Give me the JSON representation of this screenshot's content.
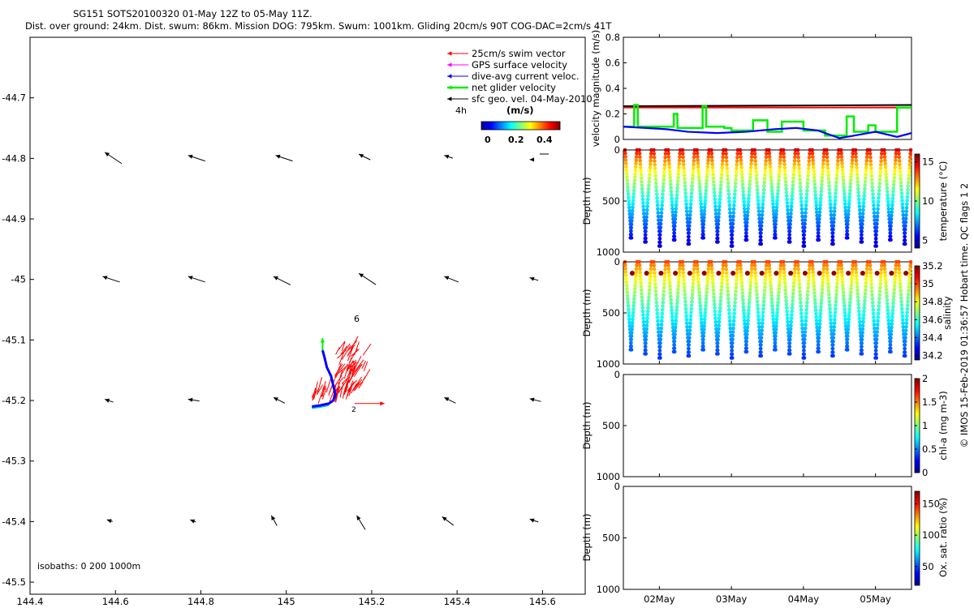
{
  "header": {
    "line1": "SG151 SOTS20100320 01-May 12Z to 05-May 11Z.",
    "line2": "Dist. over ground: 24km. Dist. swum: 86km. Mission DOG: 795km. Swum: 1001km. Gliding 20cm/s 90T COG-DAC=2cm/s 41T"
  },
  "credit": "© IMOS 15-Feb-2019 01:36:57 Hobart time. QC flags 1  2",
  "colors": {
    "swim": "#ff0000",
    "gps": "#ff00ff",
    "dac": "#0000ff",
    "net": "#00ee00",
    "geo": "#000000",
    "isobath": "#00bbdd"
  },
  "chart_data": [
    {
      "id": "map",
      "type": "scatter",
      "xlim": [
        144.4,
        145.7
      ],
      "ylim": [
        -45.52,
        -44.6
      ],
      "xticks": [
        144.4,
        144.6,
        144.8,
        145,
        145.2,
        145.4,
        145.6
      ],
      "xtick_labels": [
        "144.4",
        "144.6",
        "144.8",
        "145",
        "145.2",
        "145.4",
        "145.6"
      ],
      "yticks": [
        -44.7,
        -44.8,
        -44.9,
        -45,
        -45.1,
        -45.2,
        -45.3,
        -45.4,
        -45.5
      ],
      "ytick_labels": [
        "-44.7",
        "-44.8",
        "-44.9",
        "-45",
        "-45.1",
        "-45.2",
        "-45.3",
        "-45.4",
        "-45.5"
      ],
      "legend": {
        "placement": "top-right",
        "entries": [
          "25cm/s swim vector",
          "GPS surface velocity",
          "dive-avg current veloc.",
          "net glider velocity",
          "sfc geo. vel. 04-May-2010"
        ]
      },
      "scale_label": "4h",
      "colorbar": {
        "label": "(m/s)",
        "ticks": [
          0,
          0.2,
          0.4
        ],
        "tick_labels": [
          "0",
          "0.2",
          "0.4"
        ]
      },
      "track_labels": [
        "6",
        "2"
      ],
      "isobaths_note": "isobaths: 0   200  1000m",
      "geo_vectors": [
        {
          "lon": 144.575,
          "lat": -44.79,
          "u": -0.03,
          "v": 0.02
        },
        {
          "lon": 144.77,
          "lat": -44.795,
          "u": -0.03,
          "v": 0.01
        },
        {
          "lon": 144.975,
          "lat": -44.795,
          "u": -0.03,
          "v": 0.01
        },
        {
          "lon": 145.17,
          "lat": -44.793,
          "u": -0.02,
          "v": 0.01
        },
        {
          "lon": 145.37,
          "lat": -44.795,
          "u": -0.015,
          "v": 0.005
        },
        {
          "lon": 145.57,
          "lat": -44.802,
          "u": -0.008,
          "v": 0.0
        },
        {
          "lon": 144.57,
          "lat": -44.995,
          "u": -0.03,
          "v": 0.01
        },
        {
          "lon": 144.77,
          "lat": -44.995,
          "u": -0.03,
          "v": 0.01
        },
        {
          "lon": 144.97,
          "lat": -44.995,
          "u": -0.03,
          "v": 0.015
        },
        {
          "lon": 145.17,
          "lat": -44.99,
          "u": -0.03,
          "v": 0.02
        },
        {
          "lon": 145.37,
          "lat": -44.995,
          "u": -0.025,
          "v": 0.01
        },
        {
          "lon": 145.57,
          "lat": -44.997,
          "u": -0.015,
          "v": 0.005
        },
        {
          "lon": 144.575,
          "lat": -45.198,
          "u": -0.015,
          "v": 0.005
        },
        {
          "lon": 144.77,
          "lat": -45.198,
          "u": -0.02,
          "v": 0.003
        },
        {
          "lon": 144.97,
          "lat": -45.195,
          "u": -0.02,
          "v": 0.01
        },
        {
          "lon": 145.37,
          "lat": -45.195,
          "u": -0.02,
          "v": 0.01
        },
        {
          "lon": 145.57,
          "lat": -45.197,
          "u": -0.02,
          "v": 0.005
        },
        {
          "lon": 144.58,
          "lat": -45.397,
          "u": -0.01,
          "v": 0.003
        },
        {
          "lon": 144.775,
          "lat": -45.397,
          "u": -0.01,
          "v": 0.004
        },
        {
          "lon": 144.965,
          "lat": -45.39,
          "u": -0.01,
          "v": 0.018
        },
        {
          "lon": 145.165,
          "lat": -45.39,
          "u": -0.015,
          "v": 0.025
        },
        {
          "lon": 145.365,
          "lat": -45.392,
          "u": -0.02,
          "v": 0.015
        },
        {
          "lon": 145.57,
          "lat": -45.396,
          "u": -0.015,
          "v": 0.005
        }
      ],
      "track": [
        [
          145.06,
          -45.21
        ],
        [
          145.08,
          -45.208
        ],
        [
          145.1,
          -45.205
        ],
        [
          145.11,
          -45.2
        ],
        [
          145.115,
          -45.19
        ],
        [
          145.11,
          -45.175
        ],
        [
          145.105,
          -45.16
        ],
        [
          145.095,
          -45.145
        ],
        [
          145.09,
          -45.13
        ],
        [
          145.085,
          -45.117
        ]
      ],
      "swim_region": {
        "lon": [
          145.06,
          145.2
        ],
        "lat": [
          -45.21,
          -45.11
        ]
      }
    },
    {
      "id": "velocity",
      "type": "line",
      "ylabel": "velocity magnitude (m/s)",
      "ylim": [
        0,
        0.8
      ],
      "yticks": [
        0,
        0.2,
        0.4,
        0.6,
        0.8
      ],
      "ytick_labels": [
        "0",
        "0.2",
        "0.4",
        "0.6",
        "0.8"
      ],
      "xlim": [
        1.5,
        5.5
      ],
      "series": [
        {
          "color": "#ff0000",
          "values": [
            0.25,
            0.25
          ]
        },
        {
          "color": "#000000",
          "values": [
            0.26,
            0.27
          ]
        },
        {
          "color": "#00ee00",
          "x": [
            1.5,
            1.65,
            1.65,
            1.7,
            1.7,
            2.2,
            2.2,
            2.25,
            2.25,
            2.6,
            2.6,
            2.65,
            2.65,
            2.9,
            2.9,
            3.0,
            3.0,
            3.3,
            3.3,
            3.5,
            3.5,
            3.7,
            3.7,
            4.0,
            4.0,
            4.3,
            4.3,
            4.6,
            4.6,
            4.7,
            4.7,
            4.9,
            4.9,
            5.0,
            5.0,
            5.3,
            5.3,
            5.5
          ],
          "values": [
            0.1,
            0.1,
            0.27,
            0.27,
            0.1,
            0.1,
            0.2,
            0.2,
            0.09,
            0.09,
            0.26,
            0.26,
            0.1,
            0.1,
            0.09,
            0.09,
            0.07,
            0.07,
            0.15,
            0.15,
            0.06,
            0.06,
            0.14,
            0.14,
            0.07,
            0.07,
            0.03,
            0.03,
            0.18,
            0.18,
            0.06,
            0.06,
            0.11,
            0.11,
            0.06,
            0.06,
            0.25,
            0.25
          ]
        },
        {
          "color": "#0000ff",
          "x": [
            1.5,
            1.8,
            2.1,
            2.4,
            2.8,
            3.2,
            3.6,
            3.9,
            4.2,
            4.5,
            4.7,
            5.0,
            5.3,
            5.5
          ],
          "values": [
            0.1,
            0.09,
            0.08,
            0.06,
            0.05,
            0.06,
            0.08,
            0.09,
            0.07,
            0.01,
            0.03,
            0.06,
            0.02,
            0.05
          ]
        }
      ]
    },
    {
      "id": "temperature",
      "type": "scatter",
      "ylabel": "Depth (m)",
      "ylim": [
        1000,
        0
      ],
      "yticks": [
        0,
        500,
        1000
      ],
      "ytick_labels": [
        "0",
        "500",
        "1000"
      ],
      "xlim": [
        1.5,
        5.5
      ],
      "colorbar": {
        "label": "temperature (°C)",
        "range": [
          4,
          16
        ],
        "ticks": [
          5,
          10,
          15
        ],
        "tick_labels": [
          "5",
          "10",
          "15"
        ]
      },
      "dive_count": 20,
      "surface_value": 15,
      "bottom_value": 4.5
    },
    {
      "id": "salinity",
      "type": "scatter",
      "ylabel": "Depth (m)",
      "ylim": [
        1000,
        0
      ],
      "yticks": [
        0,
        500,
        1000
      ],
      "ytick_labels": [
        "0",
        "500",
        "1000"
      ],
      "xlim": [
        1.5,
        5.5
      ],
      "colorbar": {
        "label": "salinity",
        "range": [
          34.15,
          35.2
        ],
        "ticks": [
          34.2,
          34.4,
          34.6,
          34.8,
          35,
          35.2
        ],
        "tick_labels": [
          "34.2",
          "34.4",
          "34.6",
          "34.8",
          "35",
          "35.2"
        ]
      },
      "dive_count": 20,
      "surface_value": 35.0,
      "bottom_value": 34.3
    },
    {
      "id": "chla",
      "type": "scatter",
      "ylabel": "Depth (m)",
      "ylim": [
        1000,
        0
      ],
      "yticks": [
        0,
        500,
        1000
      ],
      "ytick_labels": [
        "0",
        "500",
        "1000"
      ],
      "colorbar": {
        "label": "chl-a (mg m-3)",
        "range": [
          0,
          2
        ],
        "ticks": [
          0,
          0.5,
          1,
          1.5,
          2
        ],
        "tick_labels": [
          "0",
          "0.5",
          "1",
          "1.5",
          "2"
        ]
      }
    },
    {
      "id": "oxygen",
      "type": "scatter",
      "ylabel": "Depth (m)",
      "ylim": [
        1000,
        0
      ],
      "yticks": [
        0,
        500,
        1000
      ],
      "ytick_labels": [
        "0",
        "500",
        "1000"
      ],
      "xlim": [
        1.5,
        5.5
      ],
      "xticks": [
        2,
        3,
        4,
        5
      ],
      "xtick_labels": [
        "02May",
        "03May",
        "04May",
        "05May"
      ],
      "colorbar": {
        "label": "Ox. sat. ratio (%)",
        "range": [
          20,
          170
        ],
        "ticks": [
          50,
          100,
          150
        ],
        "tick_labels": [
          "50",
          "100",
          "150"
        ]
      }
    }
  ]
}
